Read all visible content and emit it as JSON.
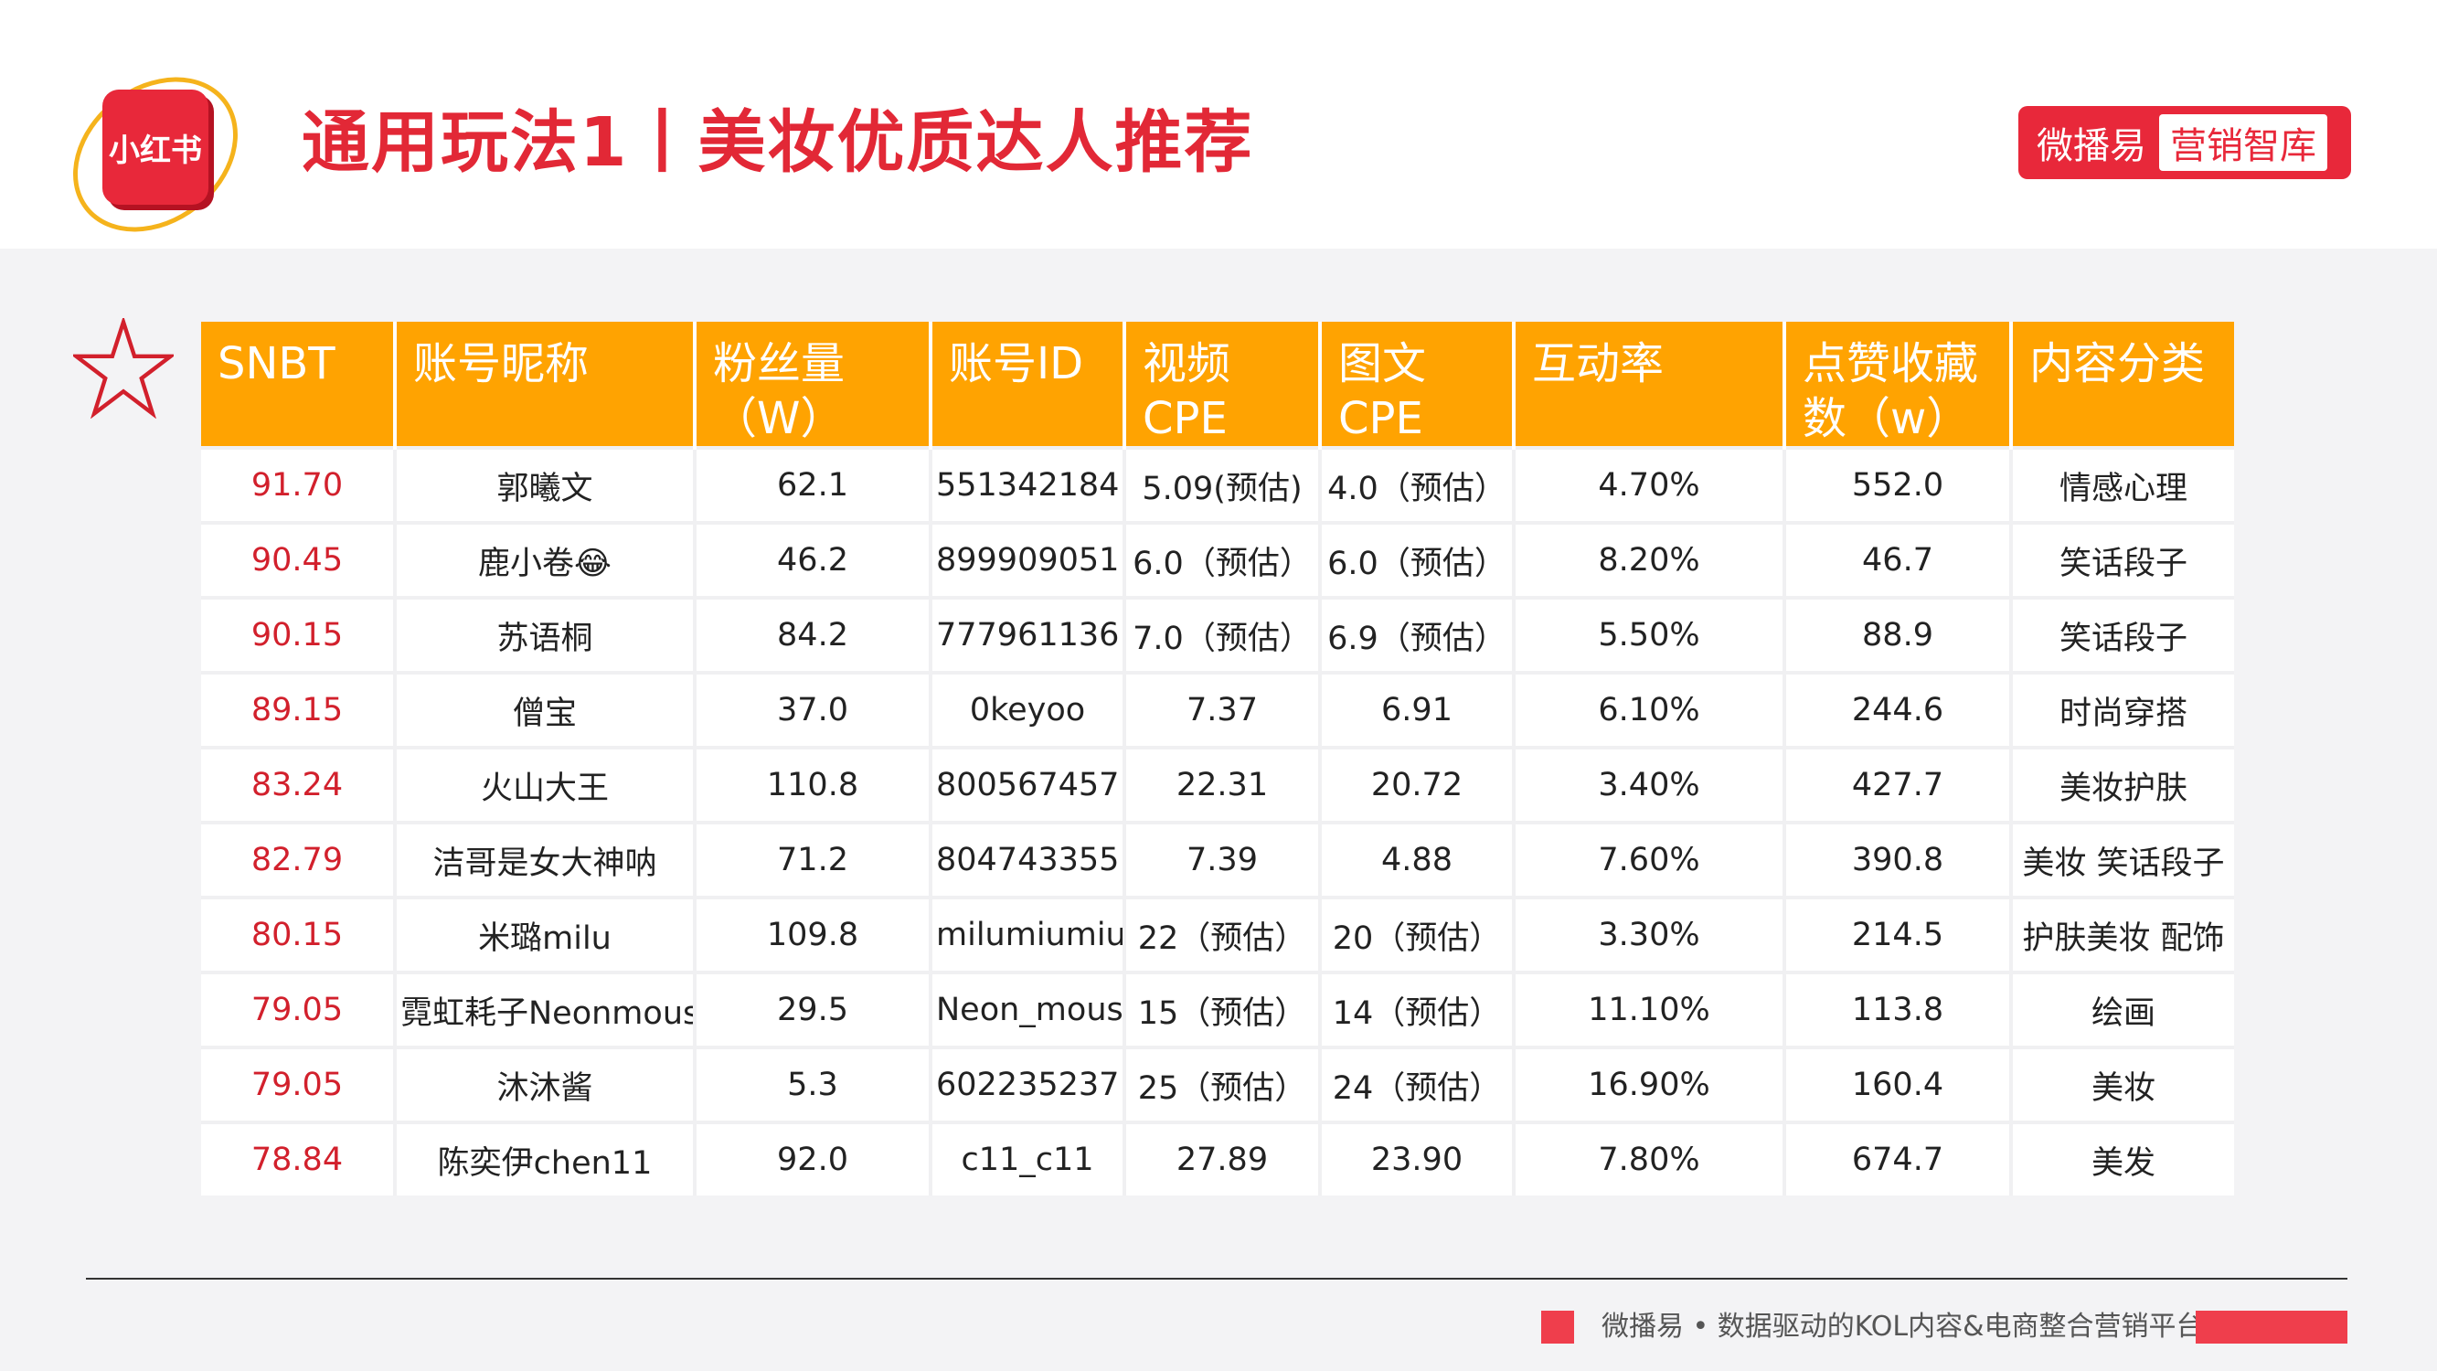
{
  "header": {
    "logo_text": "小红书",
    "title": "通用玩法1丨美妆优质达人推荐",
    "brand_name": "微播易",
    "brand_sub": "营销智库"
  },
  "table": {
    "columns": [
      "SNBT",
      "账号昵称",
      "粉丝量（W）",
      "账号ID",
      "视频 CPE",
      "图文 CPE",
      "互动率",
      "点赞收藏数（w）",
      "内容分类"
    ],
    "rows": [
      [
        "91.70",
        "郭曦文",
        "62.1",
        "551342184",
        "5.09(预估)",
        "4.0（预估）",
        "4.70%",
        "552.0",
        "情感心理"
      ],
      [
        "90.45",
        "鹿小卷😂",
        "46.2",
        "899909051",
        "6.0（预估）",
        "6.0（预估）",
        "8.20%",
        "46.7",
        "笑话段子"
      ],
      [
        "90.15",
        "苏语桐",
        "84.2",
        "777961136",
        "7.0（预估）",
        "6.9（预估）",
        "5.50%",
        "88.9",
        "笑话段子"
      ],
      [
        "89.15",
        "僧宝",
        "37.0",
        "0keyoo",
        "7.37",
        "6.91",
        "6.10%",
        "244.6",
        "时尚穿搭"
      ],
      [
        "83.24",
        "火山大王",
        "110.8",
        "800567457",
        "22.31",
        "20.72",
        "3.40%",
        "427.7",
        "美妆护肤"
      ],
      [
        "82.79",
        "洁哥是女大神呐",
        "71.2",
        "804743355",
        "7.39",
        "4.88",
        "7.60%",
        "390.8",
        "美妆 笑话段子"
      ],
      [
        "80.15",
        "米璐milu",
        "109.8",
        "milumiumiu",
        "22（预估）",
        "20（预估）",
        "3.30%",
        "214.5",
        "护肤美妆 配饰"
      ],
      [
        "79.05",
        "霓虹耗子Neonmouse",
        "29.5",
        "Neon_mouse",
        "15（预估）",
        "14（预估）",
        "11.10%",
        "113.8",
        "绘画"
      ],
      [
        "79.05",
        "沐沐酱",
        "5.3",
        "602235237",
        "25（预估）",
        "24（预估）",
        "16.90%",
        "160.4",
        "美妆"
      ],
      [
        "78.84",
        "陈奕伊chen11",
        "92.0",
        "c11_c11",
        "27.89",
        "23.90",
        "7.80%",
        "674.7",
        "美发"
      ]
    ]
  },
  "footer": {
    "text": "微播易 • 数据驱动的KOL内容&电商整合营销平台"
  },
  "colors": {
    "accent_red": "#e22836",
    "header_orange": "#ffa301",
    "logo_ring": "#f5b31c"
  }
}
